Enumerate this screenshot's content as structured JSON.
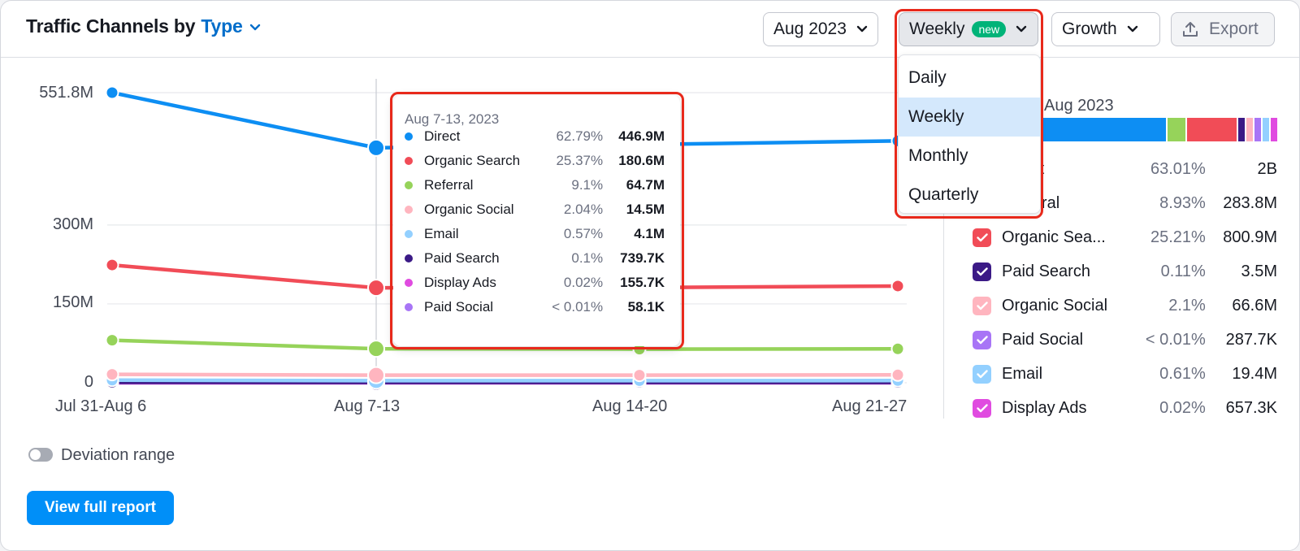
{
  "header": {
    "title_prefix": "Traffic Channels by",
    "title_type": "Type",
    "controls": {
      "month": "Aug 2023",
      "granularity": "Weekly",
      "badge": "new",
      "mode": "Growth",
      "export": "Export"
    }
  },
  "dropdown": {
    "items": [
      "Daily",
      "Weekly",
      "Monthly",
      "Quarterly"
    ],
    "selected": "Weekly"
  },
  "chart_data": {
    "type": "line",
    "categories": [
      "Jul 31-Aug 6",
      "Aug 7-13",
      "Aug 14-20",
      "Aug 21-27"
    ],
    "yticks": [
      "551.8M",
      "300M",
      "150M",
      "0"
    ],
    "ylim": [
      0,
      551.8
    ],
    "highlight_category": "Aug 7-13",
    "series": [
      {
        "name": "Direct",
        "color": "#0d8ef3",
        "values": [
          551.8,
          446.9,
          453,
          460
        ]
      },
      {
        "name": "Organic Search",
        "color": "#f14c57",
        "values": [
          224,
          180.6,
          181,
          184
        ]
      },
      {
        "name": "Referral",
        "color": "#96d35a",
        "values": [
          81,
          64.7,
          64,
          64.5
        ]
      },
      {
        "name": "Organic Social",
        "color": "#ffb5bf",
        "values": [
          16,
          14.5,
          14.5,
          15
        ]
      },
      {
        "name": "Email",
        "color": "#93d0ff",
        "values": [
          5,
          4.1,
          4,
          4.2
        ]
      },
      {
        "name": "Paid Search",
        "color": "#3b1a86",
        "values": [
          1,
          0.74,
          0.8,
          0.8
        ]
      },
      {
        "name": "Display Ads",
        "color": "#e04be0",
        "values": [
          0.2,
          0.16,
          0.16,
          0.16
        ]
      },
      {
        "name": "Paid Social",
        "color": "#a875f6",
        "values": [
          0.06,
          0.06,
          0.06,
          0.06
        ]
      }
    ]
  },
  "tooltip": {
    "date": "Aug 7-13, 2023",
    "rows": [
      {
        "name": "Direct",
        "pct": "62.79%",
        "value": "446.9M",
        "color": "#0d8ef3"
      },
      {
        "name": "Organic Search",
        "pct": "25.37%",
        "value": "180.6M",
        "color": "#f14c57"
      },
      {
        "name": "Referral",
        "pct": "9.1%",
        "value": "64.7M",
        "color": "#96d35a"
      },
      {
        "name": "Organic Social",
        "pct": "2.04%",
        "value": "14.5M",
        "color": "#ffb5bf"
      },
      {
        "name": "Email",
        "pct": "0.57%",
        "value": "4.1M",
        "color": "#93d0ff"
      },
      {
        "name": "Paid Search",
        "pct": "0.1%",
        "value": "739.7K",
        "color": "#3b1a86"
      },
      {
        "name": "Display Ads",
        "pct": "0.02%",
        "value": "155.7K",
        "color": "#e04be0"
      },
      {
        "name": "Paid Social",
        "pct": "< 0.01%",
        "value": "58.1K",
        "color": "#a875f6"
      }
    ]
  },
  "legend": {
    "title": "Aug 2023",
    "stack": [
      {
        "color": "#0d8ef3",
        "share": 63.01
      },
      {
        "color": "#96d35a",
        "share": 8.93
      },
      {
        "color": "#f14c57",
        "share": 25.21
      },
      {
        "color": "#3b1a86",
        "share": 0.11
      },
      {
        "color": "#ffb5bf",
        "share": 2.1
      },
      {
        "color": "#a875f6",
        "share": 0.01
      },
      {
        "color": "#93d0ff",
        "share": 0.61
      },
      {
        "color": "#e04be0",
        "share": 0.02
      }
    ],
    "rows": [
      {
        "name": "Direct",
        "pct": "63.01%",
        "value": "2B",
        "color": "#0d8ef3"
      },
      {
        "name": "Referral",
        "pct": "8.93%",
        "value": "283.8M",
        "color": "#96d35a"
      },
      {
        "name": "Organic Sea...",
        "pct": "25.21%",
        "value": "800.9M",
        "color": "#f14c57"
      },
      {
        "name": "Paid Search",
        "pct": "0.11%",
        "value": "3.5M",
        "color": "#3b1a86"
      },
      {
        "name": "Organic Social",
        "pct": "2.1%",
        "value": "66.6M",
        "color": "#ffb5bf"
      },
      {
        "name": "Paid Social",
        "pct": "< 0.01%",
        "value": "287.7K",
        "color": "#a875f6"
      },
      {
        "name": "Email",
        "pct": "0.61%",
        "value": "19.4M",
        "color": "#93d0ff"
      },
      {
        "name": "Display Ads",
        "pct": "0.02%",
        "value": "657.3K",
        "color": "#e04be0"
      }
    ]
  },
  "footer": {
    "deviation_label": "Deviation range",
    "report_button": "View full report"
  }
}
